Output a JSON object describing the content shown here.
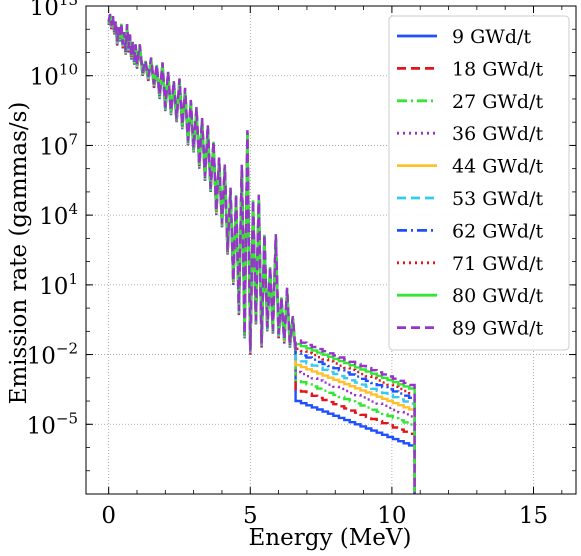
{
  "chart_data": {
    "type": "line",
    "xlabel": "Energy (MeV)",
    "ylabel": "Emission rate (gammas/s)",
    "x_ticks": [
      0,
      5,
      10,
      15
    ],
    "y_ticks": [
      {
        "value": 1e-05,
        "base": "10",
        "exp": "−5"
      },
      {
        "value": 0.01,
        "base": "10",
        "exp": "−2"
      },
      {
        "value": 10,
        "base": "10",
        "exp": "1"
      },
      {
        "value": 10000.0,
        "base": "10",
        "exp": "4"
      },
      {
        "value": 10000000.0,
        "base": "10",
        "exp": "7"
      },
      {
        "value": 10000000000.0,
        "base": "10",
        "exp": "10"
      },
      {
        "value": 10000000000000.0,
        "base": "10",
        "exp": "13"
      }
    ],
    "xlim": [
      -0.8,
      16.5
    ],
    "ylim": [
      1e-08,
      10000000000000.0
    ],
    "y_scale": "log",
    "grid": true,
    "legend_position": "top-right",
    "high_energy_offsets_log10": [
      0,
      0.5,
      0.9,
      1.25,
      1.55,
      1.8,
      2.05,
      2.25,
      2.45,
      2.6
    ],
    "series": [
      {
        "name": "9 GWd/t",
        "color": "#1f4fff",
        "dash": "solid"
      },
      {
        "name": "18 GWd/t",
        "color": "#e3141b",
        "dash": "dashed"
      },
      {
        "name": "27 GWd/t",
        "color": "#33e633",
        "dash": "dashdot"
      },
      {
        "name": "36 GWd/t",
        "color": "#9933cc",
        "dash": "dotted"
      },
      {
        "name": "44 GWd/t",
        "color": "#ffc02e",
        "dash": "solid"
      },
      {
        "name": "53 GWd/t",
        "color": "#33ccf0",
        "dash": "dashed"
      },
      {
        "name": "62 GWd/t",
        "color": "#1f4fff",
        "dash": "dashdot"
      },
      {
        "name": "71 GWd/t",
        "color": "#e3141b",
        "dash": "dotted"
      },
      {
        "name": "80 GWd/t",
        "color": "#33e633",
        "dash": "solid"
      },
      {
        "name": "89 GWd/t",
        "color": "#9933cc",
        "dash": "dashed"
      }
    ],
    "base_spectrum": [
      [
        0.0,
        1500000000000.0
      ],
      [
        0.05,
        3000000000000.0
      ],
      [
        0.1,
        1000000000000.0
      ],
      [
        0.15,
        2500000000000.0
      ],
      [
        0.2,
        600000000000.0
      ],
      [
        0.25,
        1500000000000.0
      ],
      [
        0.3,
        200000000000.0
      ],
      [
        0.35,
        800000000000.0
      ],
      [
        0.4,
        300000000000.0
      ],
      [
        0.45,
        1200000000000.0
      ],
      [
        0.5,
        150000000000.0
      ],
      [
        0.55,
        500000000000.0
      ],
      [
        0.6,
        80000000000.0
      ],
      [
        0.65,
        1100000000000.0
      ],
      [
        0.7,
        100000000000.0
      ],
      [
        0.75,
        400000000000.0
      ],
      [
        0.8,
        50000000000.0
      ],
      [
        0.85,
        200000000000.0
      ],
      [
        0.9,
        30000000000.0
      ],
      [
        0.95,
        150000000000.0
      ],
      [
        1.0,
        20000000000.0
      ],
      [
        1.1,
        150000000000.0
      ],
      [
        1.2,
        10000000000.0
      ],
      [
        1.3,
        30000000000.0
      ],
      [
        1.4,
        6000000000.0
      ],
      [
        1.5,
        40000000000.0
      ],
      [
        1.6,
        3000000000.0
      ],
      [
        1.7,
        20000000000.0
      ],
      [
        1.8,
        1000000000.0
      ],
      [
        1.9,
        25000000000.0
      ],
      [
        2.0,
        300000000.0
      ],
      [
        2.1,
        10000000000.0
      ],
      [
        2.2,
        200000000.0
      ],
      [
        2.3,
        4000000000.0
      ],
      [
        2.4,
        100000000.0
      ],
      [
        2.5,
        5000000000.0
      ],
      [
        2.6,
        50000000.0
      ],
      [
        2.7,
        2000000000.0
      ],
      [
        2.8,
        10000000.0
      ],
      [
        2.9,
        600000000.0
      ],
      [
        3.0,
        5000000.0
      ],
      [
        3.1,
        300000000.0
      ],
      [
        3.2,
        1000000.0
      ],
      [
        3.3,
        100000000.0
      ],
      [
        3.4,
        300000.0
      ],
      [
        3.5,
        50000000.0
      ],
      [
        3.6,
        100000.0
      ],
      [
        3.7,
        10000000.0
      ],
      [
        3.8,
        10000.0
      ],
      [
        3.9,
        2000000.0
      ],
      [
        4.0,
        3000.0
      ],
      [
        4.1,
        1000000.0
      ],
      [
        4.2,
        200
      ],
      [
        4.3,
        100000.0
      ],
      [
        4.4,
        10
      ],
      [
        4.5,
        50000.0
      ],
      [
        4.6,
        0.5
      ],
      [
        4.7,
        1000000.0
      ],
      [
        4.8,
        0.05
      ],
      [
        4.9,
        30000000.0
      ],
      [
        5.0,
        0.01
      ],
      [
        5.1,
        30000.0
      ],
      [
        5.2,
        0.2
      ],
      [
        5.3,
        50000.0
      ],
      [
        5.4,
        0.02
      ],
      [
        5.5,
        1000.0
      ],
      [
        5.6,
        0.1
      ],
      [
        5.7,
        40
      ],
      [
        5.8,
        0.08
      ],
      [
        5.9,
        1000.0
      ],
      [
        6.0,
        0.05
      ],
      [
        6.1,
        2
      ],
      [
        6.2,
        0.03
      ],
      [
        6.3,
        5
      ],
      [
        6.4,
        0.02
      ],
      [
        6.5,
        0.3
      ],
      [
        6.6,
        0.01
      ]
    ],
    "high_energy_start_level": 0.0001,
    "high_energy_end_level": 1e-06,
    "high_energy_end_x": 10.8,
    "drop_floor": 1e-08
  }
}
